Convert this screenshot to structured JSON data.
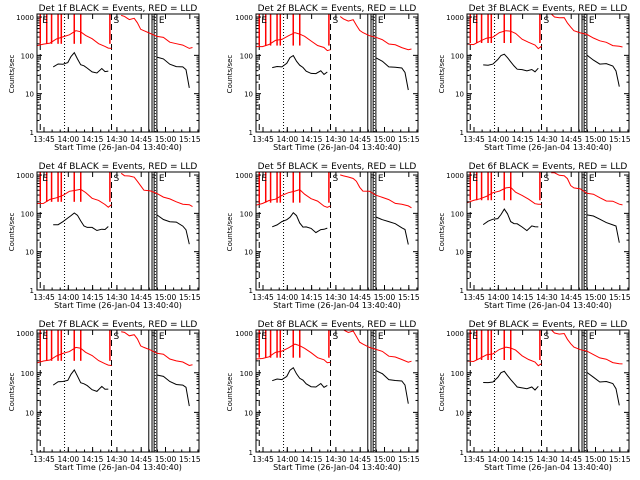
{
  "chart_data": {
    "type": "line",
    "panels": [
      {
        "title": "Det 1f BLACK = Events, RED = LLD"
      },
      {
        "title": "Det 2f BLACK = Events, RED = LLD"
      },
      {
        "title": "Det 3f BLACK = Events, RED = LLD"
      },
      {
        "title": "Det 4f BLACK = Events, RED = LLD"
      },
      {
        "title": "Det 5f BLACK = Events, RED = LLD"
      },
      {
        "title": "Det 6f BLACK = Events, RED = LLD"
      },
      {
        "title": "Det 7f BLACK = Events, RED = LLD"
      },
      {
        "title": "Det 8f BLACK = Events, RED = LLD"
      },
      {
        "title": "Det 9f BLACK = Events, RED = LLD"
      }
    ],
    "xlabel": "Start Time (26-Jan-04 13:40:40)",
    "ylabel": "Counts/sec",
    "x_ticks": [
      "13:45",
      "14:00",
      "14:15",
      "14:30",
      "14:45",
      "15:00",
      "15:15"
    ],
    "x_tick_minutes": [
      4.33,
      19.33,
      34.33,
      49.33,
      64.33,
      79.33,
      94.33
    ],
    "xlim_minutes": [
      0,
      100
    ],
    "y_ticks": [
      "1",
      "10",
      "100",
      "1000"
    ],
    "y_tick_values": [
      1,
      10,
      100,
      1000
    ],
    "ylim": [
      1,
      1200
    ],
    "log_y": true,
    "markers": [
      {
        "label": "E",
        "x_minutes": 2,
        "style": "dashed"
      },
      {
        "label": "S",
        "x_minutes": 46,
        "style": "dashed"
      },
      {
        "label": "F",
        "x_minutes": 69,
        "style": "solid"
      },
      {
        "label": "E",
        "x_minutes": 74,
        "style": "solid"
      }
    ],
    "dotted_lines_minutes": [
      17,
      73
    ],
    "solid_lines_minutes": [
      71,
      72.3
    ],
    "series": [
      {
        "color": "#ff0000",
        "segments": [
          [
            [
              0,
              180
            ],
            [
              4,
              190
            ],
            [
              8,
              220
            ],
            [
              12,
              260
            ],
            [
              16,
              300
            ],
            [
              20,
              360
            ],
            [
              24,
              420
            ],
            [
              27,
              420
            ],
            [
              30,
              340
            ],
            [
              34,
              260
            ],
            [
              38,
              210
            ],
            [
              42,
              170
            ],
            [
              44,
              150
            ],
            [
              46,
              160
            ]
          ],
          [
            [
              52,
              1100
            ],
            [
              54,
              1000
            ],
            [
              57,
              900
            ],
            [
              60,
              900
            ],
            [
              62,
              700
            ],
            [
              64,
              500
            ],
            [
              66,
              420
            ],
            [
              70,
              380
            ],
            [
              74,
              320
            ],
            [
              78,
              280
            ],
            [
              82,
              230
            ],
            [
              86,
              200
            ],
            [
              90,
              180
            ],
            [
              94,
              160
            ],
            [
              96,
              155
            ]
          ]
        ],
        "spikes_minutes": [
          2,
          6,
          9,
          13,
          15,
          23,
          27,
          45
        ]
      },
      {
        "color": "#000000",
        "segments": [
          [
            [
              10,
              50
            ],
            [
              13,
              55
            ],
            [
              16,
              60
            ],
            [
              19,
              70
            ],
            [
              21,
              90
            ],
            [
              23,
              110
            ],
            [
              25,
              85
            ],
            [
              27,
              60
            ],
            [
              29,
              50
            ],
            [
              31,
              45
            ],
            [
              34,
              40
            ],
            [
              37,
              35
            ],
            [
              40,
              42
            ],
            [
              42,
              38
            ],
            [
              44,
              42
            ]
          ],
          [
            [
              74,
              90
            ],
            [
              78,
              75
            ],
            [
              82,
              60
            ],
            [
              86,
              55
            ],
            [
              90,
              48
            ],
            [
              92,
              40
            ],
            [
              94,
              15
            ]
          ]
        ]
      }
    ]
  }
}
